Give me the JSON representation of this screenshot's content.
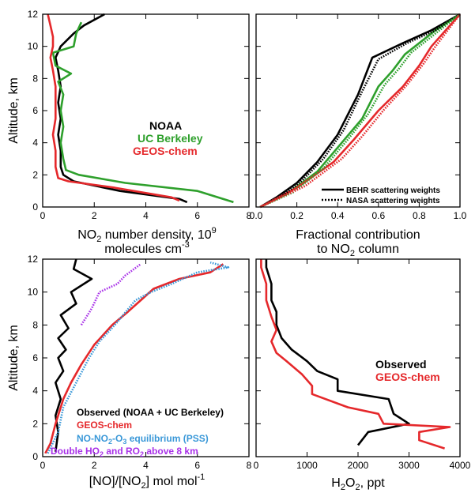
{
  "colors": {
    "black": "#000000",
    "green": "#2ea02c",
    "red": "#e5282b",
    "blue": "#3a98d8",
    "purple": "#a830e8"
  },
  "chart_data": [
    {
      "type": "line",
      "panel": "top-left",
      "title": "",
      "xlabel_line1": "NO2 number density, 10^9",
      "xlabel_line2": "molecules cm^-3",
      "ylabel": "Altitude, km",
      "xlim": [
        0,
        8
      ],
      "ylim": [
        0,
        12
      ],
      "xticks": [
        "0",
        "2",
        "4",
        "6",
        "8"
      ],
      "yticks": [
        "0",
        "2",
        "4",
        "6",
        "8",
        "10",
        "12"
      ],
      "legend": {
        "placement": "right",
        "entries": [
          "NOAA",
          "UC Berkeley",
          "GEOS-chem"
        ]
      },
      "series": [
        {
          "name": "NOAA",
          "color": "black",
          "dash": "solid",
          "points": [
            [
              5.6,
              0.3
            ],
            [
              5.3,
              0.5
            ],
            [
              3.0,
              1.0
            ],
            [
              1.2,
              1.6
            ],
            [
              0.8,
              2.0
            ],
            [
              0.7,
              2.5
            ],
            [
              0.7,
              3.5
            ],
            [
              0.6,
              4.5
            ],
            [
              0.7,
              5.5
            ],
            [
              0.6,
              6.5
            ],
            [
              0.7,
              7.5
            ],
            [
              0.6,
              8.5
            ],
            [
              0.5,
              9.3
            ],
            [
              0.7,
              10.0
            ],
            [
              1.2,
              10.8
            ],
            [
              1.6,
              11.3
            ],
            [
              2.4,
              12.0
            ]
          ]
        },
        {
          "name": "UC Berkeley",
          "color": "green",
          "dash": "solid",
          "points": [
            [
              7.4,
              0.3
            ],
            [
              6.0,
              1.0
            ],
            [
              3.2,
              1.5
            ],
            [
              1.4,
              2.0
            ],
            [
              0.9,
              2.3
            ],
            [
              0.8,
              3.0
            ],
            [
              0.7,
              4.0
            ],
            [
              0.8,
              5.0
            ],
            [
              0.7,
              6.0
            ],
            [
              0.8,
              7.0
            ],
            [
              0.6,
              7.8
            ],
            [
              1.1,
              8.3
            ],
            [
              0.5,
              8.8
            ],
            [
              0.4,
              9.6
            ],
            [
              1.2,
              10.0
            ],
            [
              1.3,
              10.8
            ],
            [
              1.5,
              11.5
            ]
          ]
        },
        {
          "name": "GEOS-chem",
          "color": "red",
          "dash": "solid",
          "points": [
            [
              5.3,
              0.4
            ],
            [
              5.0,
              0.6
            ],
            [
              2.8,
              1.2
            ],
            [
              1.0,
              1.6
            ],
            [
              0.6,
              1.8
            ],
            [
              0.5,
              2.5
            ],
            [
              0.5,
              3.5
            ],
            [
              0.4,
              4.5
            ],
            [
              0.5,
              5.5
            ],
            [
              0.5,
              6.5
            ],
            [
              0.5,
              7.5
            ],
            [
              0.4,
              8.5
            ],
            [
              0.3,
              9.3
            ],
            [
              0.4,
              10.0
            ],
            [
              0.4,
              10.6
            ],
            [
              0.3,
              11.3
            ],
            [
              0.2,
              12.0
            ]
          ]
        }
      ]
    },
    {
      "type": "line",
      "panel": "top-right",
      "title": "",
      "xlabel_line1": "Fractional contribution",
      "xlabel_line2": "to NO2 column",
      "xlim": [
        0,
        1
      ],
      "ylim": [
        0,
        12
      ],
      "xticks": [
        "0.0",
        "0.2",
        "0.4",
        "0.6",
        "0.8",
        "1.0"
      ],
      "legend": {
        "placement": "bottom-right",
        "entries": [
          "BEHR scattering weights",
          "NASA scattering weights"
        ]
      },
      "series": [
        {
          "name": "BEHR scattering weights",
          "color": "black",
          "dash": "solid",
          "points": [
            [
              0.02,
              0
            ],
            [
              0.1,
              0.6
            ],
            [
              0.2,
              1.5
            ],
            [
              0.3,
              2.8
            ],
            [
              0.4,
              4.5
            ],
            [
              0.5,
              7.0
            ],
            [
              0.57,
              9.3
            ],
            [
              0.72,
              10.2
            ],
            [
              0.86,
              11.0
            ],
            [
              1.0,
              12.0
            ]
          ]
        },
        {
          "name": "BEHR scattering weights",
          "color": "green",
          "dash": "solid",
          "points": [
            [
              0.02,
              0
            ],
            [
              0.15,
              0.8
            ],
            [
              0.3,
              2.2
            ],
            [
              0.42,
              4.0
            ],
            [
              0.52,
              5.5
            ],
            [
              0.6,
              7.5
            ],
            [
              0.67,
              8.5
            ],
            [
              0.73,
              9.5
            ],
            [
              0.88,
              11.0
            ],
            [
              1.0,
              12.0
            ]
          ]
        },
        {
          "name": "BEHR scattering weights",
          "color": "red",
          "dash": "solid",
          "points": [
            [
              0.02,
              0
            ],
            [
              0.2,
              1.2
            ],
            [
              0.38,
              2.8
            ],
            [
              0.48,
              4.2
            ],
            [
              0.6,
              6.0
            ],
            [
              0.72,
              7.5
            ],
            [
              0.8,
              8.8
            ],
            [
              0.86,
              10.0
            ],
            [
              0.93,
              11.0
            ],
            [
              1.0,
              12.0
            ]
          ]
        },
        {
          "name": "NASA scattering weights",
          "color": "black",
          "dash": "dotted",
          "points": [
            [
              0.02,
              0
            ],
            [
              0.13,
              0.7
            ],
            [
              0.23,
              1.7
            ],
            [
              0.33,
              3.0
            ],
            [
              0.43,
              4.8
            ],
            [
              0.52,
              7.2
            ],
            [
              0.6,
              9.2
            ],
            [
              0.74,
              10.2
            ],
            [
              0.88,
              11.0
            ],
            [
              1.0,
              12.0
            ]
          ]
        },
        {
          "name": "NASA scattering weights",
          "color": "green",
          "dash": "dotted",
          "points": [
            [
              0.02,
              0
            ],
            [
              0.18,
              0.9
            ],
            [
              0.33,
              2.4
            ],
            [
              0.45,
              4.2
            ],
            [
              0.55,
              5.8
            ],
            [
              0.63,
              7.6
            ],
            [
              0.7,
              8.6
            ],
            [
              0.76,
              9.6
            ],
            [
              0.9,
              11.0
            ],
            [
              1.0,
              12.0
            ]
          ]
        },
        {
          "name": "NASA scattering weights",
          "color": "red",
          "dash": "dotted",
          "points": [
            [
              0.02,
              0
            ],
            [
              0.24,
              1.3
            ],
            [
              0.42,
              3.0
            ],
            [
              0.52,
              4.4
            ],
            [
              0.63,
              6.1
            ],
            [
              0.74,
              7.6
            ],
            [
              0.82,
              8.9
            ],
            [
              0.88,
              10.0
            ],
            [
              0.94,
              11.0
            ],
            [
              1.0,
              12.0
            ]
          ]
        }
      ]
    },
    {
      "type": "line",
      "panel": "bottom-left",
      "title": "",
      "xlabel_line1": "[NO]/[NO2] mol mol^-1",
      "ylabel": "Altitude, km",
      "xlim": [
        0,
        8
      ],
      "ylim": [
        0,
        12
      ],
      "xticks": [
        "0",
        "2",
        "4",
        "6",
        "8"
      ],
      "yticks": [
        "0",
        "2",
        "4",
        "6",
        "8",
        "10",
        "12"
      ],
      "legend": {
        "placement": "bottom-left",
        "entries": [
          "Observed (NOAA + UC Berkeley)",
          "GEOS-chem",
          "NO-NO2-O3 equilibrium (PSS)",
          "Double HO2 and RO2 above 8 km"
        ]
      },
      "series": [
        {
          "name": "Observed (NOAA + UC Berkeley)",
          "color": "black",
          "dash": "solid",
          "points": [
            [
              0.5,
              0.3
            ],
            [
              0.6,
              1.5
            ],
            [
              0.5,
              2.5
            ],
            [
              0.7,
              3.5
            ],
            [
              0.5,
              4.5
            ],
            [
              0.8,
              5.2
            ],
            [
              0.6,
              6.0
            ],
            [
              0.9,
              6.5
            ],
            [
              0.6,
              7.2
            ],
            [
              1.0,
              7.8
            ],
            [
              0.7,
              8.6
            ],
            [
              1.3,
              9.3
            ],
            [
              1.1,
              10.0
            ],
            [
              1.9,
              10.8
            ],
            [
              1.2,
              11.4
            ],
            [
              1.3,
              12.0
            ]
          ]
        },
        {
          "name": "GEOS-chem",
          "color": "red",
          "dash": "solid",
          "points": [
            [
              0.1,
              0.2
            ],
            [
              0.3,
              0.8
            ],
            [
              0.5,
              2.0
            ],
            [
              0.8,
              3.5
            ],
            [
              1.1,
              4.5
            ],
            [
              1.5,
              5.6
            ],
            [
              2.0,
              6.8
            ],
            [
              2.7,
              8.0
            ],
            [
              3.3,
              8.8
            ],
            [
              3.8,
              9.5
            ],
            [
              4.3,
              10.2
            ],
            [
              5.3,
              10.8
            ],
            [
              6.5,
              11.2
            ],
            [
              7.0,
              11.7
            ]
          ]
        },
        {
          "name": "NO-NO2-O3 equilibrium (PSS)",
          "color": "blue",
          "dash": "dotted",
          "points": [
            [
              0.2,
              0.2
            ],
            [
              0.6,
              1.5
            ],
            [
              0.8,
              3.0
            ],
            [
              1.3,
              4.5
            ],
            [
              1.8,
              6.0
            ],
            [
              2.2,
              7.0
            ],
            [
              2.8,
              8.0
            ],
            [
              3.6,
              9.5
            ],
            [
              4.2,
              10.0
            ],
            [
              5.0,
              10.5
            ],
            [
              6.0,
              11.2
            ],
            [
              7.2,
              11.5
            ],
            [
              6.5,
              11.8
            ]
          ]
        },
        {
          "name": "Double HO2 and RO2 above 8 km",
          "color": "purple",
          "dash": "dotted",
          "points": [
            [
              1.5,
              8.0
            ],
            [
              1.9,
              9.0
            ],
            [
              2.2,
              10.0
            ],
            [
              2.9,
              10.5
            ],
            [
              3.2,
              11.0
            ],
            [
              3.8,
              11.7
            ]
          ]
        }
      ]
    },
    {
      "type": "line",
      "panel": "bottom-right",
      "title": "",
      "xlabel_line1": "H2O2, ppt",
      "xlim": [
        0,
        4000
      ],
      "ylim": [
        0,
        12
      ],
      "xticks": [
        "0",
        "1000",
        "2000",
        "3000",
        "4000"
      ],
      "legend": {
        "placement": "right",
        "entries": [
          "Observed",
          "GEOS-chem"
        ]
      },
      "series": [
        {
          "name": "Observed",
          "color": "black",
          "dash": "solid",
          "points": [
            [
              2000,
              0.7
            ],
            [
              2200,
              1.5
            ],
            [
              3000,
              2.0
            ],
            [
              2700,
              2.6
            ],
            [
              2600,
              3.5
            ],
            [
              1600,
              4.0
            ],
            [
              1600,
              4.7
            ],
            [
              1200,
              5.2
            ],
            [
              1000,
              5.8
            ],
            [
              700,
              6.5
            ],
            [
              500,
              7.2
            ],
            [
              400,
              8.0
            ],
            [
              400,
              8.8
            ],
            [
              300,
              9.5
            ],
            [
              300,
              10.5
            ],
            [
              200,
              11.5
            ],
            [
              200,
              12.0
            ]
          ]
        },
        {
          "name": "GEOS-chem",
          "color": "red",
          "dash": "solid",
          "points": [
            [
              3700,
              0.5
            ],
            [
              3200,
              1.0
            ],
            [
              3200,
              1.5
            ],
            [
              3800,
              1.8
            ],
            [
              2500,
              2.0
            ],
            [
              2400,
              2.6
            ],
            [
              1800,
              3.0
            ],
            [
              1100,
              3.8
            ],
            [
              1100,
              4.3
            ],
            [
              900,
              5.0
            ],
            [
              600,
              5.8
            ],
            [
              400,
              6.3
            ],
            [
              300,
              7.0
            ],
            [
              400,
              7.7
            ],
            [
              300,
              8.5
            ],
            [
              200,
              9.5
            ],
            [
              200,
              10.5
            ],
            [
              100,
              11.5
            ],
            [
              100,
              12.0
            ]
          ]
        }
      ]
    }
  ]
}
